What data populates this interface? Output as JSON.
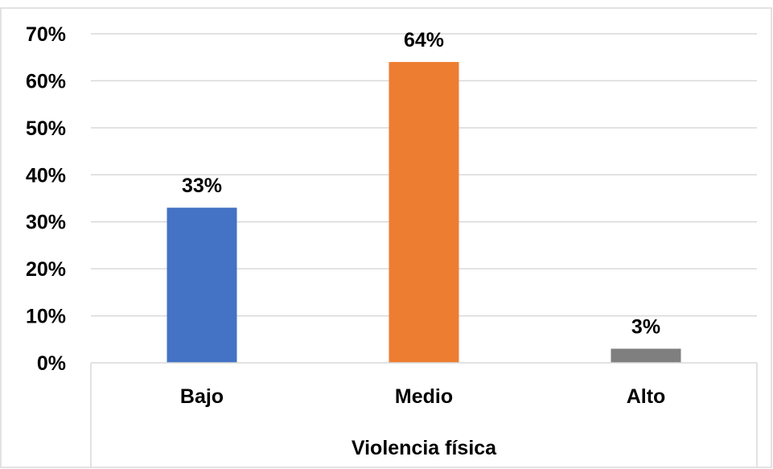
{
  "chart_data": {
    "type": "bar",
    "categories": [
      "Bajo",
      "Medio",
      "Alto"
    ],
    "values": [
      33,
      64,
      3
    ],
    "data_labels": [
      "33%",
      "64%",
      "3%"
    ],
    "colors": [
      "#4472C4",
      "#ED7D31",
      "#7F7F7F"
    ],
    "ylim": [
      0,
      70
    ],
    "yticks": [
      0,
      10,
      20,
      30,
      40,
      50,
      60,
      70
    ],
    "ytick_labels": [
      "0%",
      "10%",
      "20%",
      "30%",
      "40%",
      "50%",
      "60%",
      "70%"
    ],
    "xlabel": "Violencia física",
    "ylabel": "",
    "title": "",
    "grid": true,
    "legend": "none"
  }
}
